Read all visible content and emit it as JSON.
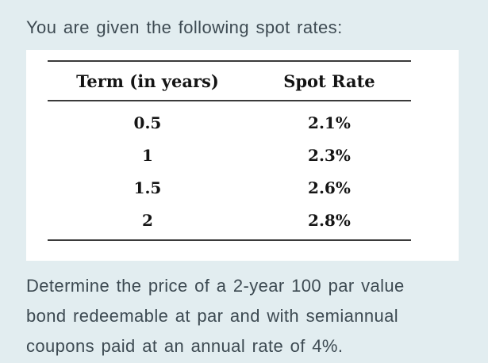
{
  "colors": {
    "background": "#e2edf0",
    "panel": "#ffffff",
    "body_text": "#3d4a52",
    "table_text": "#141414",
    "rule": "#3a3a3a"
  },
  "intro": "You are given the following spot rates:",
  "table": {
    "headers": [
      "Term (in years)",
      "Spot Rate"
    ],
    "rows": [
      {
        "term": "0.5",
        "spot_rate": "2.1%"
      },
      {
        "term": "1",
        "spot_rate": "2.3%"
      },
      {
        "term": "1.5",
        "spot_rate": "2.6%"
      },
      {
        "term": "2",
        "spot_rate": "2.8%"
      }
    ]
  },
  "question": {
    "lines": [
      "Determine the price of a 2-year 100 par value",
      "bond redeemable at par and with semiannual",
      "coupons paid at an annual rate of 4%."
    ],
    "full_text": "Determine the price of a 2-year 100 par value bond redeemable at par and with semiannual coupons paid at an annual rate of 4%."
  }
}
